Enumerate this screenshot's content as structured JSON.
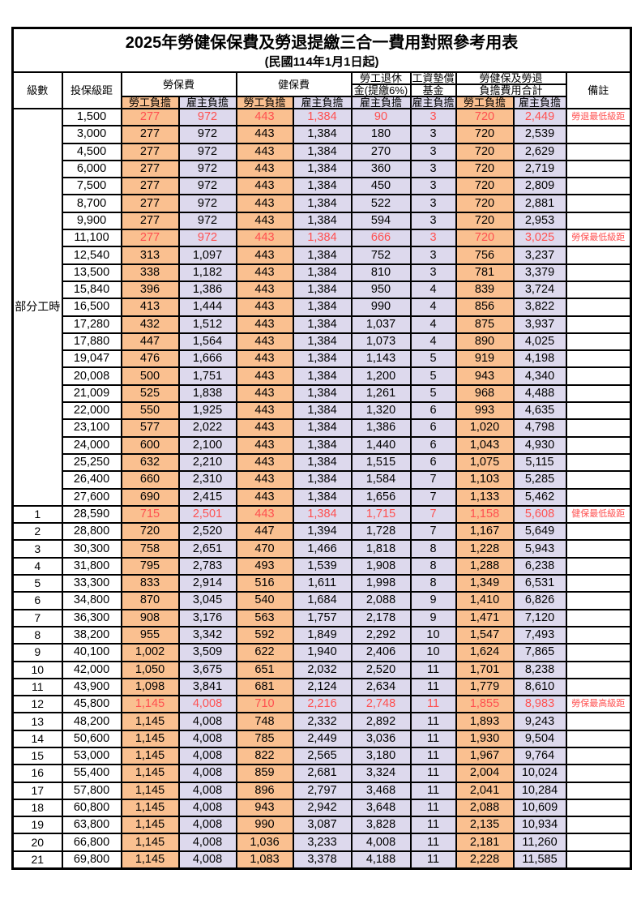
{
  "title": "2025年勞健保保費及勞退提繳三合一費用對照參考用表",
  "subtitle": "(民國114年1月1日起)",
  "header": {
    "level": "級數",
    "bracket": "投保級距",
    "note": "備註",
    "groups": {
      "labor": {
        "label": "勞保費",
        "sub": [
          "勞工負擔",
          "雇主負擔"
        ]
      },
      "health": {
        "label": "健保費",
        "sub": [
          "勞工負擔",
          "雇主負擔"
        ]
      },
      "pension": {
        "line1": "勞工退休",
        "line2": "金(提繳6%)",
        "sub": "雇主負擔"
      },
      "wage_fund": {
        "line1": "工資墊償",
        "line2": "基金",
        "sub": "雇主負擔"
      },
      "total": {
        "line1": "勞健保及勞退",
        "line2": "負擔費用合計",
        "sub": [
          "勞工負擔",
          "雇主負擔"
        ]
      }
    }
  },
  "part_time": {
    "label": "部分工時",
    "rowspan": 23
  },
  "colors": {
    "employee_fill": "#FAC090",
    "employer_fill": "#DDD9ED",
    "highlight_text": "#FF5050",
    "border": "#000000",
    "text": "#000000",
    "background": "#FFFFFF"
  },
  "rows": [
    {
      "level": "",
      "bracket": "1,500",
      "v": [
        "277",
        "972",
        "443",
        "1,384",
        "90",
        "3",
        "720",
        "2,449"
      ],
      "note": "勞退最低級距",
      "red": true
    },
    {
      "level": "",
      "bracket": "3,000",
      "v": [
        "277",
        "972",
        "443",
        "1,384",
        "180",
        "3",
        "720",
        "2,539"
      ],
      "note": "",
      "red": false
    },
    {
      "level": "",
      "bracket": "4,500",
      "v": [
        "277",
        "972",
        "443",
        "1,384",
        "270",
        "3",
        "720",
        "2,629"
      ],
      "note": "",
      "red": false
    },
    {
      "level": "",
      "bracket": "6,000",
      "v": [
        "277",
        "972",
        "443",
        "1,384",
        "360",
        "3",
        "720",
        "2,719"
      ],
      "note": "",
      "red": false
    },
    {
      "level": "",
      "bracket": "7,500",
      "v": [
        "277",
        "972",
        "443",
        "1,384",
        "450",
        "3",
        "720",
        "2,809"
      ],
      "note": "",
      "red": false
    },
    {
      "level": "",
      "bracket": "8,700",
      "v": [
        "277",
        "972",
        "443",
        "1,384",
        "522",
        "3",
        "720",
        "2,881"
      ],
      "note": "",
      "red": false
    },
    {
      "level": "",
      "bracket": "9,900",
      "v": [
        "277",
        "972",
        "443",
        "1,384",
        "594",
        "3",
        "720",
        "2,953"
      ],
      "note": "",
      "red": false
    },
    {
      "level": "",
      "bracket": "11,100",
      "v": [
        "277",
        "972",
        "443",
        "1,384",
        "666",
        "3",
        "720",
        "3,025"
      ],
      "note": "勞保最低級距",
      "red": true
    },
    {
      "level": "",
      "bracket": "12,540",
      "v": [
        "313",
        "1,097",
        "443",
        "1,384",
        "752",
        "3",
        "756",
        "3,237"
      ],
      "note": "",
      "red": false
    },
    {
      "level": "",
      "bracket": "13,500",
      "v": [
        "338",
        "1,182",
        "443",
        "1,384",
        "810",
        "3",
        "781",
        "3,379"
      ],
      "note": "",
      "red": false
    },
    {
      "level": "",
      "bracket": "15,840",
      "v": [
        "396",
        "1,386",
        "443",
        "1,384",
        "950",
        "4",
        "839",
        "3,724"
      ],
      "note": "",
      "red": false
    },
    {
      "level": "",
      "bracket": "16,500",
      "v": [
        "413",
        "1,444",
        "443",
        "1,384",
        "990",
        "4",
        "856",
        "3,822"
      ],
      "note": "",
      "red": false
    },
    {
      "level": "",
      "bracket": "17,280",
      "v": [
        "432",
        "1,512",
        "443",
        "1,384",
        "1,037",
        "4",
        "875",
        "3,937"
      ],
      "note": "",
      "red": false
    },
    {
      "level": "",
      "bracket": "17,880",
      "v": [
        "447",
        "1,564",
        "443",
        "1,384",
        "1,073",
        "4",
        "890",
        "4,025"
      ],
      "note": "",
      "red": false
    },
    {
      "level": "",
      "bracket": "19,047",
      "v": [
        "476",
        "1,666",
        "443",
        "1,384",
        "1,143",
        "5",
        "919",
        "4,198"
      ],
      "note": "",
      "red": false
    },
    {
      "level": "",
      "bracket": "20,008",
      "v": [
        "500",
        "1,751",
        "443",
        "1,384",
        "1,200",
        "5",
        "943",
        "4,340"
      ],
      "note": "",
      "red": false
    },
    {
      "level": "",
      "bracket": "21,009",
      "v": [
        "525",
        "1,838",
        "443",
        "1,384",
        "1,261",
        "5",
        "968",
        "4,488"
      ],
      "note": "",
      "red": false
    },
    {
      "level": "",
      "bracket": "22,000",
      "v": [
        "550",
        "1,925",
        "443",
        "1,384",
        "1,320",
        "6",
        "993",
        "4,635"
      ],
      "note": "",
      "red": false
    },
    {
      "level": "",
      "bracket": "23,100",
      "v": [
        "577",
        "2,022",
        "443",
        "1,384",
        "1,386",
        "6",
        "1,020",
        "4,798"
      ],
      "note": "",
      "red": false
    },
    {
      "level": "",
      "bracket": "24,000",
      "v": [
        "600",
        "2,100",
        "443",
        "1,384",
        "1,440",
        "6",
        "1,043",
        "4,930"
      ],
      "note": "",
      "red": false
    },
    {
      "level": "",
      "bracket": "25,250",
      "v": [
        "632",
        "2,210",
        "443",
        "1,384",
        "1,515",
        "6",
        "1,075",
        "5,115"
      ],
      "note": "",
      "red": false
    },
    {
      "level": "",
      "bracket": "26,400",
      "v": [
        "660",
        "2,310",
        "443",
        "1,384",
        "1,584",
        "7",
        "1,103",
        "5,285"
      ],
      "note": "",
      "red": false
    },
    {
      "level": "",
      "bracket": "27,600",
      "v": [
        "690",
        "2,415",
        "443",
        "1,384",
        "1,656",
        "7",
        "1,133",
        "5,462"
      ],
      "note": "",
      "red": false
    },
    {
      "level": "1",
      "bracket": "28,590",
      "v": [
        "715",
        "2,501",
        "443",
        "1,384",
        "1,715",
        "7",
        "1,158",
        "5,608"
      ],
      "note": "健保最低級距",
      "red": true
    },
    {
      "level": "2",
      "bracket": "28,800",
      "v": [
        "720",
        "2,520",
        "447",
        "1,394",
        "1,728",
        "7",
        "1,167",
        "5,649"
      ],
      "note": "",
      "red": false
    },
    {
      "level": "3",
      "bracket": "30,300",
      "v": [
        "758",
        "2,651",
        "470",
        "1,466",
        "1,818",
        "8",
        "1,228",
        "5,943"
      ],
      "note": "",
      "red": false
    },
    {
      "level": "4",
      "bracket": "31,800",
      "v": [
        "795",
        "2,783",
        "493",
        "1,539",
        "1,908",
        "8",
        "1,288",
        "6,238"
      ],
      "note": "",
      "red": false
    },
    {
      "level": "5",
      "bracket": "33,300",
      "v": [
        "833",
        "2,914",
        "516",
        "1,611",
        "1,998",
        "8",
        "1,349",
        "6,531"
      ],
      "note": "",
      "red": false
    },
    {
      "level": "6",
      "bracket": "34,800",
      "v": [
        "870",
        "3,045",
        "540",
        "1,684",
        "2,088",
        "9",
        "1,410",
        "6,826"
      ],
      "note": "",
      "red": false
    },
    {
      "level": "7",
      "bracket": "36,300",
      "v": [
        "908",
        "3,176",
        "563",
        "1,757",
        "2,178",
        "9",
        "1,471",
        "7,120"
      ],
      "note": "",
      "red": false
    },
    {
      "level": "8",
      "bracket": "38,200",
      "v": [
        "955",
        "3,342",
        "592",
        "1,849",
        "2,292",
        "10",
        "1,547",
        "7,493"
      ],
      "note": "",
      "red": false
    },
    {
      "level": "9",
      "bracket": "40,100",
      "v": [
        "1,002",
        "3,509",
        "622",
        "1,940",
        "2,406",
        "10",
        "1,624",
        "7,865"
      ],
      "note": "",
      "red": false
    },
    {
      "level": "10",
      "bracket": "42,000",
      "v": [
        "1,050",
        "3,675",
        "651",
        "2,032",
        "2,520",
        "11",
        "1,701",
        "8,238"
      ],
      "note": "",
      "red": false
    },
    {
      "level": "11",
      "bracket": "43,900",
      "v": [
        "1,098",
        "3,841",
        "681",
        "2,124",
        "2,634",
        "11",
        "1,779",
        "8,610"
      ],
      "note": "",
      "red": false
    },
    {
      "level": "12",
      "bracket": "45,800",
      "v": [
        "1,145",
        "4,008",
        "710",
        "2,216",
        "2,748",
        "11",
        "1,855",
        "8,983"
      ],
      "note": "勞保最高級距",
      "red": true
    },
    {
      "level": "13",
      "bracket": "48,200",
      "v": [
        "1,145",
        "4,008",
        "748",
        "2,332",
        "2,892",
        "11",
        "1,893",
        "9,243"
      ],
      "note": "",
      "red": false
    },
    {
      "level": "14",
      "bracket": "50,600",
      "v": [
        "1,145",
        "4,008",
        "785",
        "2,449",
        "3,036",
        "11",
        "1,930",
        "9,504"
      ],
      "note": "",
      "red": false
    },
    {
      "level": "15",
      "bracket": "53,000",
      "v": [
        "1,145",
        "4,008",
        "822",
        "2,565",
        "3,180",
        "11",
        "1,967",
        "9,764"
      ],
      "note": "",
      "red": false
    },
    {
      "level": "16",
      "bracket": "55,400",
      "v": [
        "1,145",
        "4,008",
        "859",
        "2,681",
        "3,324",
        "11",
        "2,004",
        "10,024"
      ],
      "note": "",
      "red": false
    },
    {
      "level": "17",
      "bracket": "57,800",
      "v": [
        "1,145",
        "4,008",
        "896",
        "2,797",
        "3,468",
        "11",
        "2,041",
        "10,284"
      ],
      "note": "",
      "red": false
    },
    {
      "level": "18",
      "bracket": "60,800",
      "v": [
        "1,145",
        "4,008",
        "943",
        "2,942",
        "3,648",
        "11",
        "2,088",
        "10,609"
      ],
      "note": "",
      "red": false
    },
    {
      "level": "19",
      "bracket": "63,800",
      "v": [
        "1,145",
        "4,008",
        "990",
        "3,087",
        "3,828",
        "11",
        "2,135",
        "10,934"
      ],
      "note": "",
      "red": false
    },
    {
      "level": "20",
      "bracket": "66,800",
      "v": [
        "1,145",
        "4,008",
        "1,036",
        "3,233",
        "4,008",
        "11",
        "2,181",
        "11,260"
      ],
      "note": "",
      "red": false
    },
    {
      "level": "21",
      "bracket": "69,800",
      "v": [
        "1,145",
        "4,008",
        "1,083",
        "3,378",
        "4,188",
        "11",
        "2,228",
        "11,585"
      ],
      "note": "",
      "red": false
    }
  ]
}
